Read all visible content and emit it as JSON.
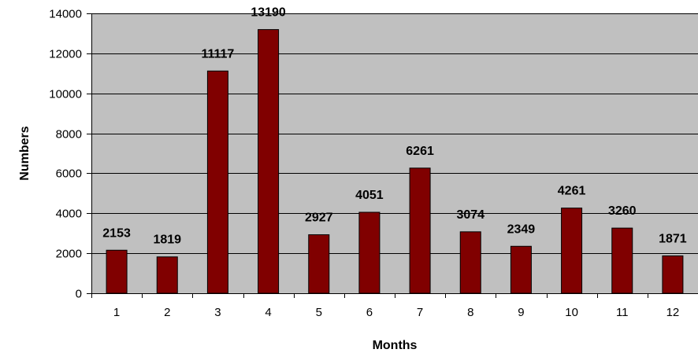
{
  "chart_data": {
    "type": "bar",
    "xlabel": "Months",
    "ylabel": "Numbers",
    "categories": [
      "1",
      "2",
      "3",
      "4",
      "5",
      "6",
      "7",
      "8",
      "9",
      "10",
      "11",
      "12"
    ],
    "values": [
      2153,
      1819,
      11117,
      13190,
      2927,
      4051,
      6261,
      3074,
      2349,
      4261,
      3260,
      1871
    ],
    "data_labels": [
      "2153",
      "1819",
      "11117",
      "13190",
      "2927",
      "4051",
      "6261",
      "3074",
      "2349",
      "4261",
      "3260",
      "1871"
    ],
    "ylim": [
      0,
      14000
    ],
    "yticks": [
      0,
      2000,
      4000,
      6000,
      8000,
      10000,
      12000,
      14000
    ],
    "ytick_labels": [
      "0",
      "2000",
      "4000",
      "6000",
      "8000",
      "10000",
      "12000",
      "14000"
    ],
    "grid": true,
    "legend": "none",
    "colors": {
      "bar": "#800000",
      "plot_background": "#c0c0c0",
      "grid": "#000000"
    }
  }
}
